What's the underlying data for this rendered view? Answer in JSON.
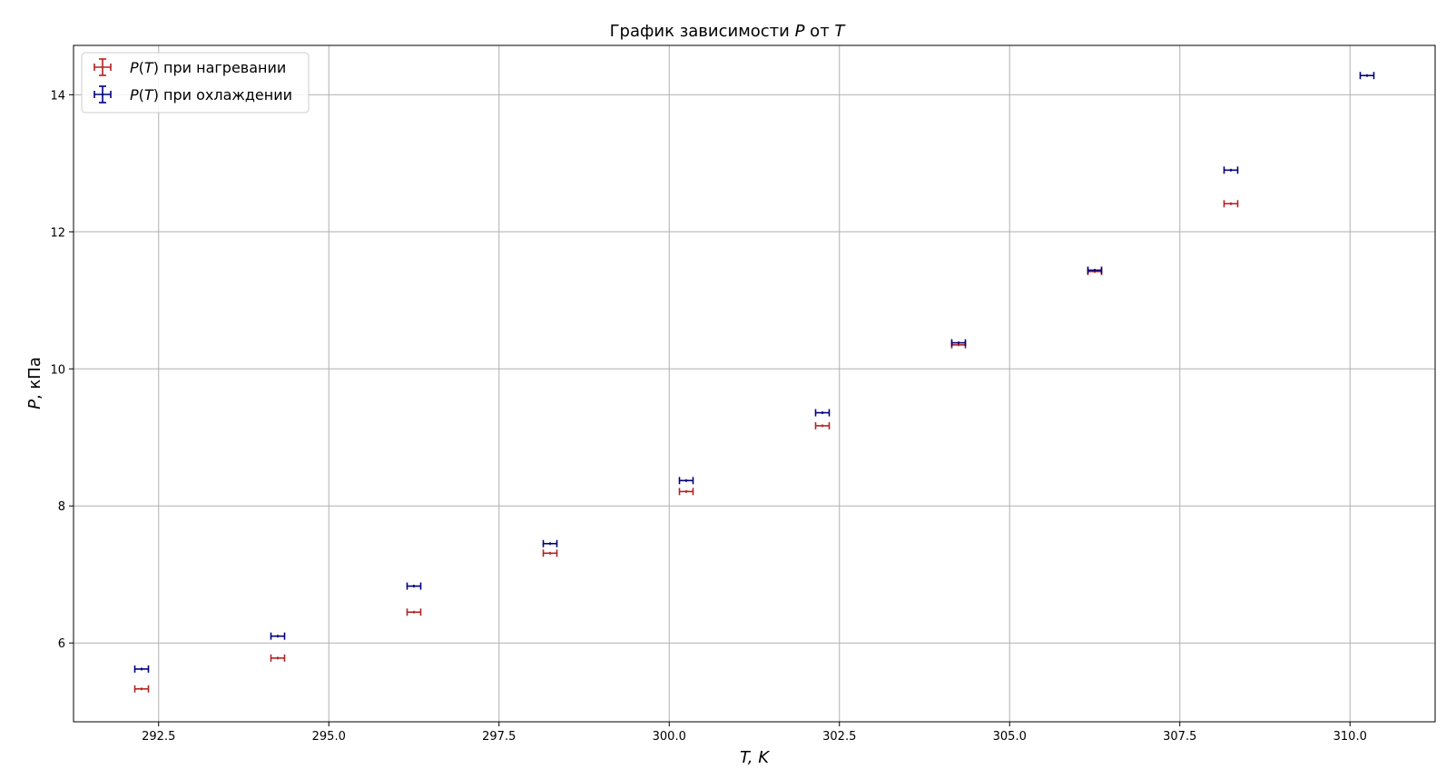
{
  "chart_data": {
    "type": "scatter",
    "title": "График зависимости P от T",
    "title_parts": [
      "График зависимости ",
      "P",
      " от ",
      "T"
    ],
    "xlabel": "T, K",
    "xlabel_parts": [
      "T",
      ", ",
      "K"
    ],
    "ylabel": "P, кПа",
    "ylabel_parts": [
      "P",
      ", кПа"
    ],
    "xlim": [
      291.25,
      311.25
    ],
    "ylim": [
      4.85,
      14.72
    ],
    "xticks": [
      292.5,
      295.0,
      297.5,
      300.0,
      302.5,
      305.0,
      307.5,
      310.0
    ],
    "xtick_labels": [
      "292.5",
      "295.0",
      "297.5",
      "300.0",
      "302.5",
      "305.0",
      "307.5",
      "310.0"
    ],
    "yticks": [
      6,
      8,
      10,
      12,
      14
    ],
    "ytick_labels": [
      "6",
      "8",
      "10",
      "12",
      "14"
    ],
    "grid": true,
    "legend_position": "top-left",
    "x_error": 0.1,
    "series": [
      {
        "name": "P(T) при нагревании",
        "legend_parts": [
          "P",
          "(",
          "T",
          ") при нагревании"
        ],
        "color": "#b22222",
        "x": [
          292.25,
          294.25,
          296.25,
          298.25,
          300.25,
          302.25,
          304.25,
          306.25,
          308.25
        ],
        "y": [
          5.33,
          5.78,
          6.45,
          7.31,
          8.21,
          9.17,
          10.35,
          11.42,
          12.41
        ]
      },
      {
        "name": "P(T) при охлаждении",
        "legend_parts": [
          "P",
          "(",
          "T",
          ") при охлаждении"
        ],
        "color": "#00007f",
        "x": [
          292.25,
          294.25,
          296.25,
          298.25,
          300.25,
          302.25,
          304.25,
          306.25,
          308.25,
          310.25
        ],
        "y": [
          5.62,
          6.1,
          6.83,
          7.45,
          8.37,
          9.36,
          10.38,
          11.44,
          12.9,
          14.28
        ]
      }
    ]
  }
}
